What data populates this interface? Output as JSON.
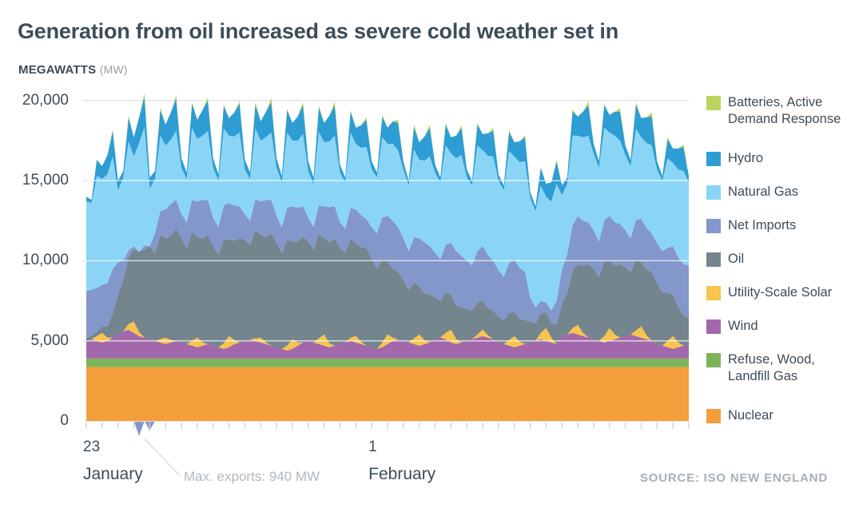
{
  "title": "Generation from oil increased as severe cold weather set in",
  "units_label": "MEGAWATTS",
  "units_suffix": "(MW)",
  "annotation": {
    "text": "Max. exports: 940 MW"
  },
  "source": "SOURCE: ISO NEW ENGLAND",
  "legend": {
    "items": [
      {
        "label": "Batteries, Active\nDemand Response",
        "color": "#bcd45e"
      },
      {
        "label": "Hydro",
        "color": "#2d9dd4"
      },
      {
        "label": "Natural Gas",
        "color": "#8ad5f6"
      },
      {
        "label": "Net Imports",
        "color": "#8497cb"
      },
      {
        "label": "Oil",
        "color": "#74858e"
      },
      {
        "label": "Utility-Scale Solar",
        "color": "#f8c44c"
      },
      {
        "label": "Wind",
        "color": "#a268ab"
      },
      {
        "label": "Refuse, Wood,\nLandfill Gas",
        "color": "#7cb45a"
      },
      {
        "label": "Nuclear",
        "color": "#f49e3c"
      }
    ]
  },
  "chart_data": {
    "type": "area",
    "stacked": true,
    "title": "Generation from oil increased as severe cold weather set in",
    "ylabel": "MEGAWATTS (MW)",
    "unit": "MW",
    "ylim": [
      0,
      20000
    ],
    "grid": true,
    "legend_position": "right",
    "x_start": "January 23, 00:00",
    "x_end": "February 11, 00:00",
    "x_step_hours": 4,
    "n_points": 115,
    "tick_every_steps": 3,
    "y_ticks": [
      {
        "label": "20,000",
        "mw": 20000
      },
      {
        "label": "15,000",
        "mw": 15000
      },
      {
        "label": "10,000",
        "mw": 10000
      },
      {
        "label": "5,000",
        "mw": 5000
      },
      {
        "label": "0",
        "mw": 0
      }
    ],
    "gridlines_mw": [
      5000,
      10000,
      15000,
      20000
    ],
    "x_axis_labels": [
      {
        "day": "23",
        "month": "January",
        "t": 0
      },
      {
        "day": "1",
        "month": "February",
        "t": 54
      }
    ],
    "min_net_imports_mw": -940,
    "series": [
      {
        "name": "nuclear",
        "label": "Nuclear",
        "color": "#f49e3c",
        "constant": 3350
      },
      {
        "name": "refuse_wood_landfill_gas",
        "label": "Refuse, Wood, Landfill Gas",
        "color": "#7cb45a",
        "constant": 550
      },
      {
        "name": "wind",
        "label": "Wind",
        "color": "#a268ab",
        "values": [
          1100,
          1200,
          1100,
          1000,
          1100,
          1300,
          1500,
          1700,
          1800,
          1600,
          1400,
          1300,
          1200,
          1100,
          1000,
          900,
          1000,
          1100,
          1000,
          900,
          800,
          700,
          800,
          900,
          800,
          700,
          600,
          700,
          900,
          1000,
          1100,
          1200,
          1100,
          1000,
          900,
          800,
          700,
          600,
          500,
          600,
          800,
          1000,
          1100,
          1000,
          900,
          800,
          700,
          800,
          900,
          1000,
          1100,
          1000,
          900,
          800,
          700,
          600,
          700,
          900,
          1100,
          1200,
          1100,
          1000,
          900,
          800,
          900,
          1000,
          1200,
          1300,
          1200,
          1000,
          900,
          1000,
          1100,
          1200,
          1300,
          1400,
          1300,
          1200,
          1000,
          900,
          800,
          700,
          800,
          900,
          1000,
          1100,
          1200,
          1100,
          1000,
          900,
          1400,
          1500,
          1600,
          1500,
          1400,
          1300,
          1200,
          1100,
          1000,
          1100,
          1200,
          1300,
          1400,
          1500,
          1400,
          1300,
          1200,
          1100,
          900,
          800,
          700,
          600,
          700,
          800,
          900
        ]
      },
      {
        "name": "utility_scale_solar",
        "label": "Utility-Scale Solar",
        "color": "#f8c44c",
        "values": [
          0,
          0,
          300,
          600,
          200,
          0,
          0,
          0,
          350,
          700,
          250,
          0,
          0,
          0,
          200,
          400,
          150,
          0,
          0,
          0,
          300,
          600,
          200,
          0,
          0,
          0,
          350,
          700,
          250,
          0,
          0,
          0,
          150,
          300,
          100,
          0,
          0,
          0,
          300,
          600,
          200,
          0,
          0,
          0,
          350,
          700,
          250,
          0,
          0,
          0,
          200,
          400,
          150,
          0,
          0,
          0,
          300,
          600,
          200,
          0,
          0,
          0,
          350,
          700,
          250,
          0,
          0,
          0,
          400,
          800,
          300,
          0,
          0,
          0,
          200,
          400,
          150,
          0,
          0,
          0,
          350,
          700,
          250,
          0,
          0,
          0,
          400,
          800,
          300,
          0,
          0,
          0,
          300,
          600,
          200,
          0,
          0,
          0,
          400,
          800,
          300,
          0,
          0,
          0,
          350,
          700,
          250,
          0,
          0,
          0,
          400,
          800,
          300,
          0,
          0
        ]
      },
      {
        "name": "oil",
        "label": "Oil",
        "color": "#74858e",
        "values": [
          200,
          200,
          300,
          400,
          700,
          1500,
          2500,
          3200,
          4200,
          4500,
          5000,
          5500,
          5800,
          5500,
          6500,
          6200,
          6500,
          7000,
          6500,
          6000,
          6800,
          6300,
          6500,
          6800,
          6200,
          5800,
          6500,
          6000,
          6200,
          6500,
          6300,
          5900,
          6800,
          6400,
          6600,
          7000,
          6500,
          6000,
          6600,
          6100,
          6300,
          6600,
          6200,
          5800,
          6500,
          6000,
          6300,
          6700,
          6000,
          5600,
          6200,
          5800,
          5900,
          6100,
          5500,
          5000,
          5200,
          4600,
          4300,
          4200,
          3800,
          3300,
          3500,
          3000,
          2900,
          3000,
          2600,
          2300,
          2500,
          2200,
          2100,
          2200,
          2000,
          1800,
          2000,
          1800,
          1700,
          1800,
          1600,
          1500,
          1700,
          1500,
          1400,
          1500,
          1300,
          1100,
          1200,
          1000,
          900,
          1200,
          2000,
          2600,
          3600,
          3800,
          4200,
          4600,
          4400,
          4000,
          4600,
          4200,
          4300,
          4600,
          4300,
          3900,
          4400,
          4000,
          4100,
          4300,
          3800,
          3300,
          3000,
          2600,
          2200,
          1900,
          1600
        ]
      },
      {
        "name": "net_imports",
        "label": "Net Imports",
        "color": "#8497cb",
        "values": [
          2900,
          2900,
          2700,
          2600,
          2700,
          2800,
          2000,
          1200,
          400,
          200,
          -940,
          250,
          -600,
          1200,
          1500,
          1800,
          2000,
          1800,
          1500,
          1600,
          2000,
          2200,
          2400,
          2200,
          1800,
          1700,
          2100,
          2300,
          2200,
          2000,
          1600,
          1500,
          1900,
          2100,
          2300,
          2100,
          1700,
          1600,
          2000,
          2200,
          2100,
          1900,
          1500,
          1400,
          1800,
          2000,
          2200,
          2000,
          1600,
          1500,
          1900,
          2100,
          2000,
          1800,
          2000,
          2200,
          2600,
          2800,
          3000,
          2800,
          2600,
          2400,
          2800,
          3000,
          3200,
          3000,
          2800,
          2600,
          3000,
          3200,
          3400,
          3200,
          3000,
          2800,
          3200,
          3400,
          3300,
          3100,
          2900,
          2700,
          3100,
          3300,
          3200,
          3000,
          1500,
          1000,
          800,
          600,
          800,
          1500,
          2200,
          2400,
          2800,
          3000,
          2800,
          2600,
          2400,
          2200,
          2600,
          2800,
          2700,
          2500,
          2300,
          2100,
          2500,
          2700,
          2600,
          2400,
          2500,
          2600,
          2800,
          3000,
          3100,
          3200,
          3300
        ]
      },
      {
        "name": "natural_gas",
        "label": "Natural Gas",
        "color": "#8ad5f6",
        "values": [
          5600,
          5400,
          7000,
          6600,
          6800,
          7000,
          4500,
          5200,
          6800,
          5600,
          6800,
          7400,
          3600,
          3400,
          4700,
          4000,
          4000,
          4300,
          2900,
          2700,
          4500,
          3900,
          4000,
          4300,
          3100,
          2900,
          4800,
          4200,
          4300,
          4600,
          2800,
          2600,
          4400,
          3800,
          3900,
          4200,
          3000,
          2800,
          4700,
          4100,
          4200,
          4500,
          2900,
          2700,
          4600,
          4000,
          4100,
          4400,
          3100,
          2900,
          4700,
          4100,
          4200,
          4500,
          3600,
          3500,
          5000,
          4500,
          4800,
          4800,
          4300,
          4100,
          5500,
          4900,
          5100,
          5600,
          5000,
          4800,
          6200,
          5600,
          5800,
          6300,
          5200,
          5000,
          6600,
          6000,
          6200,
          6500,
          5600,
          5400,
          7000,
          6400,
          6600,
          6900,
          6200,
          6000,
          7200,
          6600,
          6800,
          7300,
          4600,
          4400,
          5600,
          5000,
          5200,
          5400,
          4800,
          4600,
          5800,
          5200,
          5400,
          5200,
          4700,
          4500,
          5700,
          5100,
          5300,
          5500,
          4600,
          4400,
          5600,
          5200,
          5500,
          5800,
          5200
        ]
      },
      {
        "name": "hydro",
        "label": "Hydro",
        "color": "#2d9dd4",
        "values": [
          300,
          200,
          1000,
          800,
          1200,
          1600,
          600,
          400,
          1500,
          1200,
          1600,
          1900,
          700,
          500,
          1600,
          1300,
          1700,
          2000,
          600,
          400,
          1500,
          1200,
          1600,
          1900,
          600,
          400,
          1400,
          1100,
          1500,
          1800,
          600,
          400,
          1500,
          1200,
          1600,
          1900,
          600,
          400,
          1400,
          1100,
          1500,
          1800,
          600,
          400,
          1500,
          1200,
          1600,
          1900,
          500,
          300,
          1300,
          1000,
          1400,
          1700,
          500,
          300,
          1300,
          1000,
          1400,
          1700,
          500,
          300,
          1400,
          1100,
          1500,
          1800,
          500,
          300,
          1300,
          1000,
          1400,
          1700,
          500,
          300,
          1300,
          1000,
          1400,
          1600,
          400,
          300,
          1200,
          900,
          1300,
          1500,
          400,
          300,
          1100,
          800,
          1200,
          1400,
          600,
          400,
          1500,
          1200,
          1600,
          1900,
          600,
          400,
          1400,
          1100,
          1500,
          1800,
          600,
          400,
          1500,
          1200,
          1600,
          1800,
          500,
          300,
          1200,
          900,
          1300,
          1500,
          400
        ]
      },
      {
        "name": "batteries_active_demand_response",
        "label": "Batteries, Active Demand Response",
        "color": "#bcd45e",
        "values": [
          0,
          0,
          0,
          0,
          0,
          100,
          0,
          0,
          100,
          0,
          0,
          200,
          0,
          0,
          150,
          0,
          0,
          250,
          0,
          0,
          100,
          0,
          0,
          200,
          0,
          0,
          100,
          0,
          0,
          150,
          0,
          0,
          150,
          0,
          0,
          250,
          0,
          0,
          100,
          0,
          0,
          200,
          0,
          0,
          150,
          0,
          0,
          250,
          0,
          0,
          100,
          0,
          0,
          150,
          0,
          0,
          100,
          0,
          0,
          200,
          0,
          0,
          150,
          0,
          0,
          200,
          0,
          0,
          100,
          0,
          0,
          150,
          0,
          0,
          100,
          0,
          0,
          200,
          0,
          0,
          100,
          0,
          0,
          150,
          0,
          0,
          0,
          0,
          0,
          100,
          0,
          0,
          150,
          0,
          0,
          250,
          0,
          0,
          100,
          0,
          0,
          200,
          0,
          0,
          150,
          0,
          0,
          250,
          0,
          0,
          100,
          0,
          0,
          150,
          0
        ]
      }
    ]
  }
}
